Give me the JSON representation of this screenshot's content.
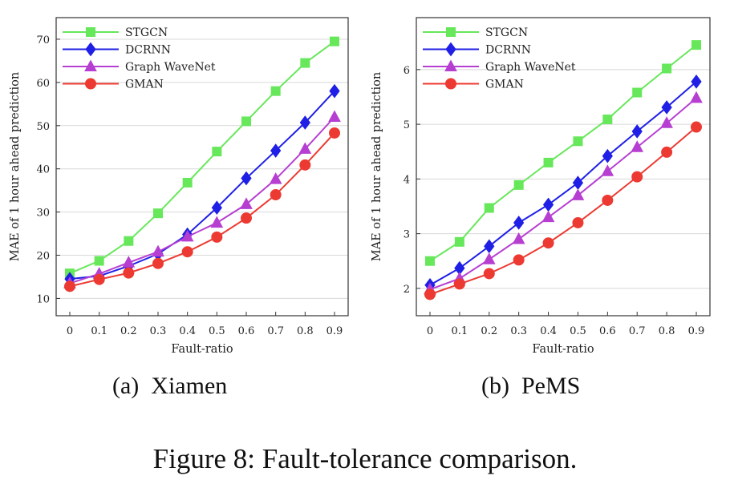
{
  "colors": {
    "STGCN": "#66e85a",
    "DCRNN": "#1f1fe6",
    "Graph WaveNet": "#b63fd2",
    "GMAN": "#ec3a32"
  },
  "chart_data": [
    {
      "type": "line",
      "x": [
        "0",
        "0.1",
        "0.2",
        "0.3",
        "0.4",
        "0.5",
        "0.6",
        "0.7",
        "0.8",
        "0.9"
      ],
      "xlabel": "Fault-ratio",
      "ylabel": "MAE of 1 hour ahead prediction",
      "ylim": [
        6,
        75
      ],
      "yticks": [
        10,
        20,
        30,
        40,
        50,
        60,
        70
      ],
      "grid": true,
      "legend": "top-left",
      "series": [
        {
          "name": "STGCN",
          "marker": "square",
          "values": [
            15.8,
            18.7,
            23.3,
            29.7,
            36.8,
            44.0,
            51.0,
            58.0,
            64.5,
            69.5
          ]
        },
        {
          "name": "DCRNN",
          "marker": "diamond",
          "values": [
            14.5,
            15.2,
            17.5,
            20.3,
            24.8,
            31.0,
            37.8,
            44.2,
            50.7,
            58.0
          ]
        },
        {
          "name": "Graph WaveNet",
          "marker": "triangle",
          "values": [
            13.5,
            15.7,
            18.3,
            20.8,
            24.3,
            27.5,
            31.8,
            37.6,
            44.6,
            52.0
          ]
        },
        {
          "name": "GMAN",
          "marker": "circle",
          "values": [
            12.8,
            14.4,
            15.9,
            18.1,
            20.8,
            24.2,
            28.6,
            34.0,
            40.9,
            48.3
          ]
        }
      ],
      "subcaption": "(a) Xiamen"
    },
    {
      "type": "line",
      "x": [
        "0",
        "0.1",
        "0.2",
        "0.3",
        "0.4",
        "0.5",
        "0.6",
        "0.7",
        "0.8",
        "0.9"
      ],
      "xlabel": "Fault-ratio",
      "ylabel": "MAE of 1 hour ahead prediction",
      "ylim": [
        1.5,
        6.95
      ],
      "yticks": [
        2,
        3,
        4,
        5,
        6
      ],
      "grid": true,
      "legend": "top-left",
      "series": [
        {
          "name": "STGCN",
          "marker": "square",
          "values": [
            2.5,
            2.85,
            3.47,
            3.89,
            4.3,
            4.69,
            5.09,
            5.58,
            6.02,
            6.45
          ]
        },
        {
          "name": "DCRNN",
          "marker": "diamond",
          "values": [
            2.06,
            2.37,
            2.77,
            3.2,
            3.53,
            3.93,
            4.42,
            4.87,
            5.31,
            5.78
          ]
        },
        {
          "name": "Graph WaveNet",
          "marker": "triangle",
          "values": [
            1.98,
            2.18,
            2.53,
            2.9,
            3.3,
            3.7,
            4.14,
            4.58,
            5.02,
            5.48
          ]
        },
        {
          "name": "GMAN",
          "marker": "circle",
          "values": [
            1.89,
            2.08,
            2.27,
            2.52,
            2.83,
            3.2,
            3.61,
            4.04,
            4.49,
            4.95
          ]
        }
      ],
      "subcaption": "(b) PeMS"
    }
  ],
  "figure_caption": "Figure 8: Fault-tolerance comparison."
}
